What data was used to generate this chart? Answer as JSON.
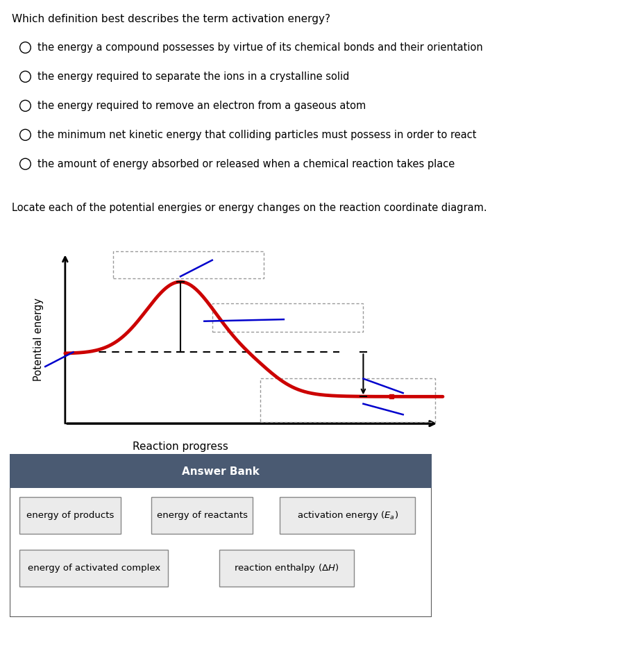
{
  "title_question": "Which definition best describes the term activation energy?",
  "options": [
    "the energy a compound possesses by virtue of its chemical bonds and their orientation",
    "the energy required to separate the ions in a crystalline solid",
    "the energy required to remove an electron from a gaseous atom",
    "the minimum net kinetic energy that colliding particles must possess in order to react",
    "the amount of energy absorbed or released when a chemical reaction takes place"
  ],
  "locate_text": "Locate each of the potential energies or energy changes on the reaction coordinate diagram.",
  "xlabel": "Reaction progress",
  "ylabel": "Potential energy",
  "answer_bank_title": "Answer Bank",
  "answer_bank_row1": [
    "energy of products",
    "energy of reactants",
    "activation energy (Ea)"
  ],
  "answer_bank_row2": [
    "energy of activated complex",
    "reaction enthalpy (DH)"
  ],
  "curve_color": "#cc0000",
  "blue_line_color": "#0000cc",
  "dotted_box_color": "#999999",
  "answer_bank_header_color": "#4a5a72",
  "bg_color": "#ffffff"
}
